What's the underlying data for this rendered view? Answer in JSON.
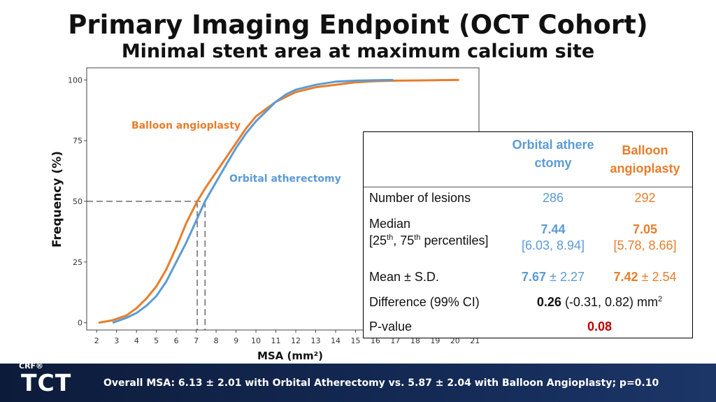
{
  "title": "Primary Imaging Endpoint (OCT Cohort)",
  "subtitle": "Minimal stent area at maximum calcium site",
  "chart_data": {
    "type": "line",
    "xlabel": "MSA (mm²)",
    "ylabel": "Frequency (%)",
    "xlim": [
      1.5,
      21.2
    ],
    "ylim": [
      -3,
      105
    ],
    "x_ticks": [
      2,
      3,
      4,
      5,
      6,
      7,
      8,
      9,
      10,
      11,
      12,
      13,
      14,
      15,
      16,
      17,
      18,
      19,
      20,
      21
    ],
    "y_ticks": [
      0,
      25,
      50,
      75,
      100
    ],
    "series": [
      {
        "name": "Balloon angioplasty",
        "color": "#e87d2b",
        "x": [
          2.1,
          2.8,
          3.5,
          4.0,
          4.5,
          5.0,
          5.5,
          6.0,
          6.5,
          7.05,
          7.5,
          8.0,
          8.5,
          9.0,
          9.5,
          10.0,
          10.5,
          11.0,
          11.5,
          12.0,
          13.0,
          14.0,
          15.0,
          16.0,
          17.0,
          18.0,
          19.0,
          20.0,
          20.2
        ],
        "y": [
          0,
          1,
          3,
          6,
          10,
          15,
          22,
          31,
          41,
          50,
          56,
          62,
          68,
          74,
          80,
          85,
          88,
          91,
          93,
          95,
          97,
          98,
          99,
          99.5,
          99.7,
          99.8,
          99.9,
          100,
          100
        ]
      },
      {
        "name": "Orbital atherectomy",
        "color": "#5b9bd5",
        "x": [
          2.8,
          3.5,
          4.0,
          4.5,
          5.0,
          5.5,
          6.0,
          6.5,
          7.0,
          7.44,
          8.0,
          8.5,
          9.0,
          9.5,
          10.0,
          10.5,
          11.0,
          11.5,
          12.0,
          13.0,
          14.0,
          15.0,
          16.0,
          16.9
        ],
        "y": [
          0,
          2,
          4,
          7,
          11,
          17,
          25,
          33,
          42,
          50,
          58,
          65,
          72,
          78,
          83,
          87,
          91,
          94,
          96,
          98,
          99.3,
          99.7,
          99.9,
          100
        ]
      }
    ],
    "annotations": [
      {
        "type": "dashed-median",
        "y": 50,
        "x_values": [
          7.05,
          7.44
        ]
      }
    ]
  },
  "table": {
    "col_orbital": "Orbital atherectomy",
    "col_balloon": "Balloon angioplasty",
    "rows": {
      "lesions": {
        "label": "Number of lesions",
        "orbital": "286",
        "balloon": "292"
      },
      "median": {
        "label": "Median",
        "sublabel_a": "[25",
        "sup_a": "th",
        "sublabel_b": ", 75",
        "sup_b": "th",
        "sublabel_c": " percentiles]",
        "orbital": "7.44",
        "orbital_iqr": "[6.03, 8.94]",
        "balloon": "7.05",
        "balloon_iqr": "[5.78, 8.66]"
      },
      "mean": {
        "label": "Mean ± S.D.",
        "orbital": "7.67",
        "orbital_sd": " ± 2.27",
        "balloon": "7.42",
        "balloon_sd": " ± 2.54"
      },
      "difference": {
        "label": "Difference (99% CI)",
        "value": "0.26",
        "ci": " (-0.31, 0.82) mm",
        "unit_sup": "2"
      },
      "pvalue": {
        "label": "P-value",
        "value": "0.08"
      }
    }
  },
  "footer": {
    "text": "Overall MSA: 6.13 ± 2.01 with Orbital Atherectomy vs. 5.87 ± 2.04  with Balloon Angioplasty; p=0.10",
    "logo_crf": "CRF®",
    "logo_tct": "TCT"
  },
  "colors": {
    "orbital": "#5b9bd5",
    "balloon": "#e87d2b",
    "pvalue": "#c00000"
  }
}
